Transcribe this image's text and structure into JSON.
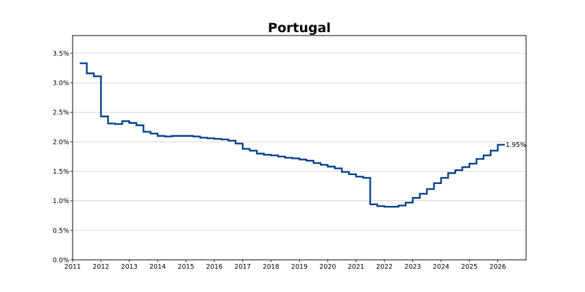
{
  "chart_data": {
    "type": "line",
    "step": true,
    "title": "Portugal",
    "xlabel": "",
    "ylabel": "",
    "xlim": [
      2011.0,
      2027.0
    ],
    "ylim": [
      0.0,
      3.8
    ],
    "x_ticks": [
      2011,
      2012,
      2013,
      2014,
      2015,
      2016,
      2017,
      2018,
      2019,
      2020,
      2021,
      2022,
      2023,
      2024,
      2025,
      2026
    ],
    "x_tick_labels": [
      "2011",
      "2012",
      "2013",
      "2014",
      "2015",
      "2016",
      "2017",
      "2018",
      "2019",
      "2020",
      "2021",
      "2022",
      "2023",
      "2024",
      "2025",
      "2026"
    ],
    "y_ticks": [
      0.0,
      0.5,
      1.0,
      1.5,
      2.0,
      2.5,
      3.0,
      3.5
    ],
    "y_tick_labels": [
      "0.0%",
      "0.5%",
      "1.0%",
      "1.5%",
      "2.0%",
      "2.5%",
      "3.0%",
      "3.5%"
    ],
    "grid": "horizontal",
    "line_color": "#003f8a",
    "end_label": "1.95%",
    "series": [
      {
        "x": [
          2011.25,
          2011.5,
          2011.75,
          2012.0,
          2012.25,
          2012.5,
          2012.75,
          2013.0,
          2013.25,
          2013.5,
          2013.75,
          2014.0,
          2014.25,
          2014.5,
          2014.75,
          2015.0,
          2015.25,
          2015.5,
          2015.75,
          2016.0,
          2016.25,
          2016.5,
          2016.75,
          2017.0,
          2017.25,
          2017.5,
          2017.75,
          2018.0,
          2018.25,
          2018.5,
          2018.75,
          2019.0,
          2019.25,
          2019.5,
          2019.75,
          2020.0,
          2020.25,
          2020.5,
          2020.75,
          2021.0,
          2021.25,
          2021.5,
          2021.75,
          2022.0,
          2022.25,
          2022.5,
          2022.75,
          2023.0,
          2023.25,
          2023.5,
          2023.75,
          2024.0,
          2024.25,
          2024.5,
          2024.75,
          2025.0,
          2025.25,
          2025.5,
          2025.75,
          2026.0,
          2026.25
        ],
        "y": [
          3.33,
          3.16,
          3.11,
          2.43,
          2.31,
          2.3,
          2.35,
          2.32,
          2.28,
          2.17,
          2.14,
          2.1,
          2.09,
          2.1,
          2.1,
          2.1,
          2.09,
          2.07,
          2.06,
          2.05,
          2.04,
          2.02,
          1.97,
          1.88,
          1.85,
          1.8,
          1.78,
          1.77,
          1.75,
          1.73,
          1.72,
          1.7,
          1.68,
          1.64,
          1.61,
          1.58,
          1.55,
          1.49,
          1.45,
          1.41,
          1.39,
          0.94,
          0.91,
          0.9,
          0.9,
          0.92,
          0.97,
          1.05,
          1.12,
          1.2,
          1.3,
          1.39,
          1.47,
          1.52,
          1.57,
          1.63,
          1.71,
          1.77,
          1.85,
          1.95,
          1.95
        ]
      }
    ]
  }
}
